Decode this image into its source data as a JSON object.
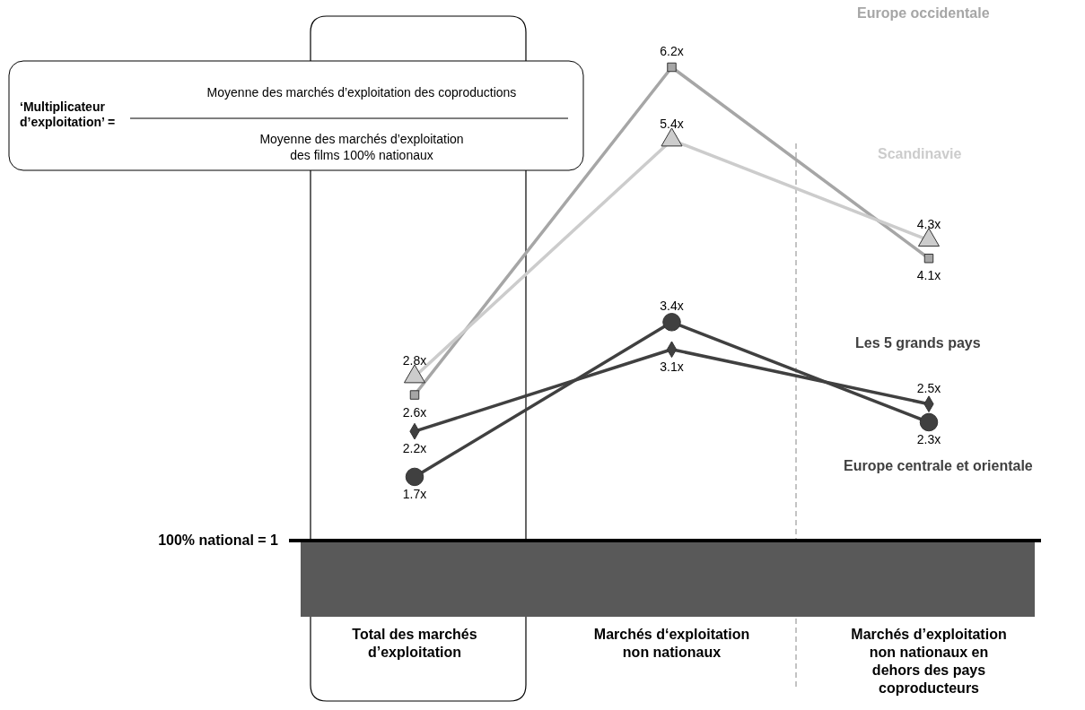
{
  "chart_data": {
    "type": "line",
    "categories": [
      "Total des marchés d’exploitation",
      "Marchés d‘exploitation non nationaux",
      "Marchés d’exploitation non nationaux en dehors des pays coproducteurs"
    ],
    "series": [
      {
        "name": "Europe occidentale",
        "color": "#a6a6a6",
        "marker": "square",
        "values": [
          2.6,
          6.2,
          4.1
        ],
        "value_labels": [
          "2.6x",
          "6.2x",
          "4.1x"
        ]
      },
      {
        "name": "Scandinavie",
        "color": "#cccccc",
        "marker": "triangle",
        "values": [
          2.8,
          5.4,
          4.3
        ],
        "value_labels": [
          "2.8x",
          "5.4x",
          "4.3x"
        ]
      },
      {
        "name": "Les 5 grands pays",
        "color": "#404040",
        "marker": "diamond",
        "values": [
          2.2,
          3.1,
          2.5
        ],
        "value_labels": [
          "2.2x",
          "3.1x",
          "2.5x"
        ]
      },
      {
        "name": "Europe centrale et orientale",
        "color": "#404040",
        "marker": "circle",
        "values": [
          1.7,
          3.4,
          2.3
        ],
        "value_labels": [
          "1.7x",
          "3.4x",
          "2.3x"
        ]
      }
    ],
    "tick_labels": "x",
    "ref_lines": [
      {
        "axis": "y",
        "value": 1,
        "label": "100% national = 1",
        "color": "#000000"
      }
    ],
    "annotations": [
      "‘Multiplicateur d’exploitation’ =",
      "Moyenne des marchés d’exploitation des coproductions",
      "Moyenne des marchés d’exploitation des films 100% nationaux"
    ]
  }
}
